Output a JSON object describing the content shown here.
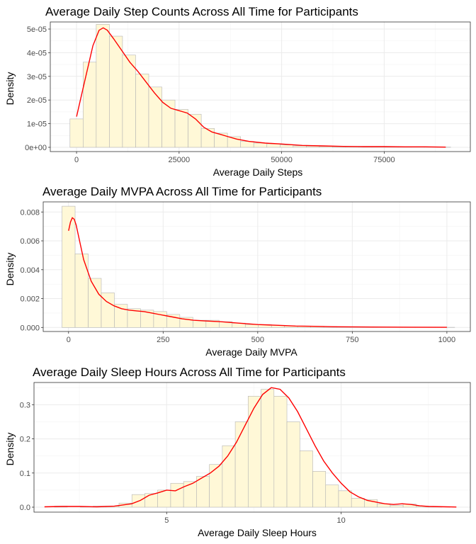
{
  "chart_data": [
    {
      "type": "bar",
      "title": "Average Daily Step Counts Across All Time for Participants",
      "xlabel": "Average Daily Steps",
      "ylabel": "Density",
      "bin_width": 3200,
      "bin_centers": [
        0,
        3200,
        6400,
        9600,
        12800,
        16000,
        19200,
        22400,
        25600,
        28800,
        32000,
        35200,
        38400,
        41600,
        44800,
        48000,
        51200,
        54400,
        57600,
        60800,
        64000,
        67200,
        70400,
        73600,
        76800,
        80000,
        83200,
        86400,
        89600
      ],
      "values": [
        1.2e-05,
        3.6e-05,
        5.2e-05,
        4.7e-05,
        3.9e-05,
        3.1e-05,
        2.55e-05,
        2e-05,
        1.6e-05,
        1.4e-05,
        8e-06,
        6e-06,
        4.5e-06,
        2.5e-06,
        1.8e-06,
        1.5e-06,
        1e-06,
        6e-07,
        5e-07,
        4e-07,
        3e-07,
        3e-07,
        2e-07,
        2e-07,
        1.5e-07,
        1.5e-07,
        1e-07,
        1e-07,
        1e-07
      ],
      "density_x": [
        0,
        2000,
        4000,
        5500,
        6500,
        7500,
        9000,
        11000,
        13000,
        15000,
        17000,
        19000,
        21000,
        23000,
        25000,
        27000,
        29000,
        31000,
        33000,
        35000,
        37000,
        39000,
        42000,
        46000,
        50000,
        55000,
        60000,
        65000,
        70000,
        75000,
        80000,
        85000,
        90000
      ],
      "density_y": [
        1.3e-05,
        2.8e-05,
        4.3e-05,
        4.95e-05,
        5.05e-05,
        4.95e-05,
        4.6e-05,
        4.1e-05,
        3.6e-05,
        3.2e-05,
        2.75e-05,
        2.3e-05,
        1.9e-05,
        1.65e-05,
        1.55e-05,
        1.45e-05,
        1.2e-05,
        8.5e-06,
        6.5e-06,
        5.5e-06,
        4.5e-06,
        3.5e-06,
        2.5e-06,
        1.8e-06,
        1.4e-06,
        8e-07,
        6e-07,
        4e-07,
        3e-07,
        3e-07,
        2e-07,
        2e-07,
        1e-07
      ],
      "xlim": [
        -6400,
        96000
      ],
      "ylim": [
        -1.8e-06,
        5.3e-05
      ],
      "x_ticks": [
        0,
        25000,
        50000,
        75000
      ],
      "x_tick_labels": [
        "0",
        "25000",
        "50000",
        "75000"
      ],
      "y_ticks": [
        0,
        1e-05,
        2e-05,
        3e-05,
        4e-05,
        5e-05
      ],
      "y_tick_labels": [
        "0e+00",
        "1e-05",
        "2e-05",
        "3e-05",
        "4e-05",
        "5e-05"
      ],
      "grid": true,
      "bar_color": "#fff8d7",
      "bar_outline": "#b4b4b4",
      "line_color": "#ff0000"
    },
    {
      "type": "bar",
      "title": "Average Daily MVPA Across All Time for Participants",
      "xlabel": "Average Daily MVPA",
      "ylabel": "Density",
      "bin_width": 34.6,
      "bin_centers": [
        0,
        34.6,
        69.2,
        103.8,
        138.4,
        173,
        207.6,
        242.2,
        276.8,
        311.4,
        346,
        380.6,
        415.2,
        449.8,
        484.4,
        519,
        553.6,
        588.2,
        622.8,
        657.4,
        692,
        726.6,
        761.2,
        795.8,
        830.4,
        865,
        899.6,
        934.2,
        968.8,
        1003.4
      ],
      "values": [
        0.0084,
        0.0051,
        0.0034,
        0.0024,
        0.0016,
        0.0013,
        0.0012,
        0.0011,
        0.0009,
        0.0007,
        0.0005,
        0.0005,
        0.0004,
        0.0003,
        0.0002,
        0.0002,
        0.00015,
        0.0001,
        0.0001,
        8e-05,
        6e-05,
        5e-05,
        4e-05,
        3e-05,
        2e-05,
        2e-05,
        1e-05,
        1e-05,
        1e-05,
        1e-05
      ],
      "density_x": [
        0,
        5,
        10,
        15,
        20,
        30,
        40,
        60,
        80,
        100,
        120,
        140,
        160,
        180,
        200,
        220,
        240,
        260,
        280,
        300,
        330,
        360,
        400,
        450,
        500,
        550,
        600,
        650,
        700,
        800,
        900,
        1000
      ],
      "density_y": [
        0.0067,
        0.0073,
        0.0076,
        0.0075,
        0.0071,
        0.0059,
        0.0047,
        0.0032,
        0.0023,
        0.0018,
        0.0015,
        0.0013,
        0.0012,
        0.00115,
        0.0011,
        0.001,
        0.0009,
        0.0008,
        0.0007,
        0.0006,
        0.0005,
        0.00045,
        0.0004,
        0.0003,
        0.0002,
        0.00015,
        0.0001,
        8e-05,
        5e-05,
        3e-05,
        2e-05,
        1e-05
      ],
      "xlim": [
        -67,
        1062
      ],
      "ylim": [
        -0.00028,
        0.0087
      ],
      "x_ticks": [
        0,
        250,
        500,
        750,
        1000
      ],
      "x_tick_labels": [
        "0",
        "250",
        "500",
        "750",
        "1000"
      ],
      "y_ticks": [
        0,
        0.002,
        0.004,
        0.006,
        0.008
      ],
      "y_tick_labels": [
        "0.000",
        "0.002",
        "0.004",
        "0.006",
        "0.008"
      ],
      "grid": true,
      "bar_color": "#fff8d7",
      "bar_outline": "#b4b4b4",
      "line_color": "#ff0000"
    },
    {
      "type": "bar",
      "title": "Average Daily Sleep Hours Across All Time for Participants",
      "xlabel": "Average Daily Sleep Hours",
      "ylabel": "Density",
      "bin_width": 0.37,
      "bin_centers": [
        1.6,
        1.97,
        2.34,
        2.71,
        3.08,
        3.45,
        3.82,
        4.19,
        4.56,
        4.93,
        5.3,
        5.67,
        6.04,
        6.41,
        6.78,
        7.15,
        7.52,
        7.89,
        8.26,
        8.63,
        9.0,
        9.37,
        9.74,
        10.11,
        10.48,
        10.85,
        11.22,
        11.59,
        11.96,
        12.33,
        12.7,
        13.07
      ],
      "values": [
        0,
        0.003,
        0,
        0.001,
        0.003,
        0.003,
        0.012,
        0.037,
        0.04,
        0.05,
        0.07,
        0.075,
        0.09,
        0.125,
        0.18,
        0.25,
        0.325,
        0.345,
        0.325,
        0.25,
        0.165,
        0.105,
        0.065,
        0.048,
        0.026,
        0.022,
        0.01,
        0.005,
        0.009,
        0.003,
        0.001,
        0
      ],
      "density_x": [
        1.5,
        2,
        2.5,
        3,
        3.5,
        4,
        4.25,
        4.5,
        4.75,
        5,
        5.25,
        5.5,
        5.75,
        6,
        6.25,
        6.5,
        6.75,
        7,
        7.25,
        7.5,
        7.75,
        8,
        8.25,
        8.5,
        8.75,
        9,
        9.25,
        9.5,
        9.75,
        10,
        10.25,
        10.5,
        10.75,
        11,
        11.25,
        11.5,
        11.75,
        12,
        12.25,
        12.5,
        13,
        13.3
      ],
      "density_y": [
        0.001,
        0.002,
        0.002,
        0.001,
        0.003,
        0.01,
        0.02,
        0.035,
        0.042,
        0.05,
        0.048,
        0.06,
        0.07,
        0.085,
        0.1,
        0.12,
        0.15,
        0.19,
        0.24,
        0.29,
        0.33,
        0.35,
        0.345,
        0.32,
        0.28,
        0.23,
        0.18,
        0.135,
        0.1,
        0.07,
        0.045,
        0.03,
        0.02,
        0.015,
        0.01,
        0.008,
        0.01,
        0.008,
        0.004,
        0.002,
        0.001,
        0.0005
      ],
      "xlim": [
        1.2,
        13.7
      ],
      "ylim": [
        -0.0145,
        0.365
      ],
      "x_ticks": [
        5,
        10
      ],
      "x_tick_labels": [
        "5",
        "10"
      ],
      "y_ticks": [
        0,
        0.1,
        0.2,
        0.3
      ],
      "y_tick_labels": [
        "0.0",
        "0.1",
        "0.2",
        "0.3"
      ],
      "grid": true,
      "bar_color": "#fff8d7",
      "bar_outline": "#b4b4b4",
      "line_color": "#ff0000"
    }
  ]
}
